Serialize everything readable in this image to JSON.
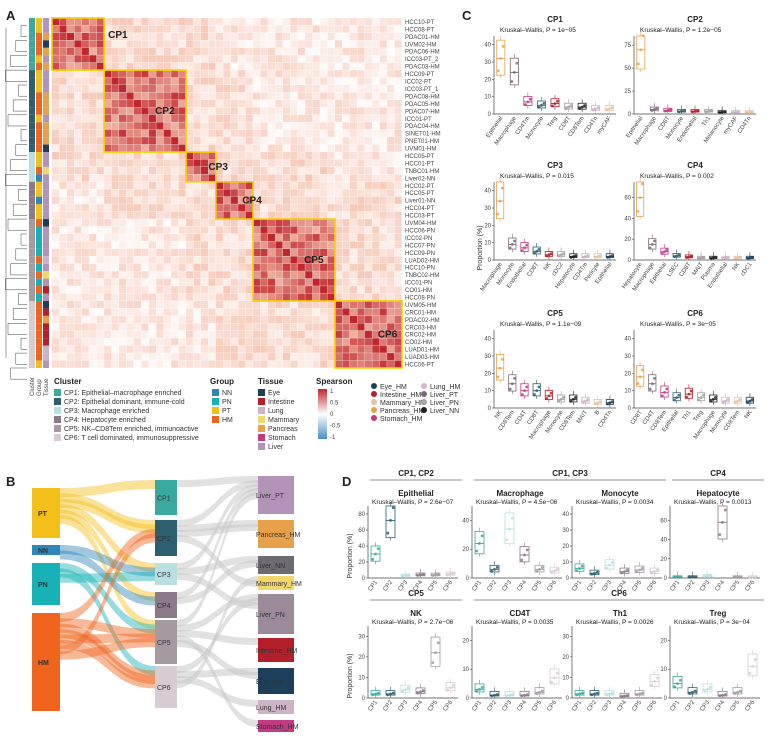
{
  "panels": {
    "A": "A",
    "B": "B",
    "C": "C",
    "D": "D"
  },
  "heatmap": {
    "side_labels": [
      "Cluster",
      "Group",
      "Tissue"
    ],
    "row_labels": [
      "HCC10-PT",
      "HCC08-PT",
      "PDAC01-HM",
      "UVM02-HM",
      "PDAC06-HM",
      "ICC03-PT_2",
      "PDAC03-HM",
      "HCC09-PT",
      "ICC02-PT",
      "ICC03-PT_1",
      "PDAC08-HM",
      "PDAC05-HM",
      "PDAC07-HM",
      "ICC01-PT",
      "PDAC04-HM",
      "SINET01-HM",
      "PNET01-HM",
      "UVM01-HM",
      "HCC05-PT",
      "HCC01-PT",
      "TNBC01-HM",
      "Liver02-NN",
      "HCC02-PT",
      "HCC05-PT",
      "Liver01-NN",
      "HCC04-PT",
      "HCC03-PT",
      "UVM04-HM",
      "HCC06-PN",
      "ICC02-PN",
      "HCC07-PN",
      "HCC09-PN",
      "LUAD02-HM",
      "HCC10-PN",
      "TNBC02-HM",
      "ICC01-PN",
      "CO01-HM",
      "HCC08-PN",
      "UVM05-HM",
      "CRC01-HM",
      "PDAC02-HM",
      "CRC03-HM",
      "CRC02-HM",
      "CO02-HM",
      "LUAD01-HM",
      "LUAD03-HM",
      "HCC06-PT"
    ],
    "clusters": [
      {
        "label": "CP1",
        "start": 0,
        "size": 7
      },
      {
        "label": "CP2",
        "start": 7,
        "size": 11
      },
      {
        "label": "CP3",
        "start": 18,
        "size": 4
      },
      {
        "label": "CP4",
        "start": 22,
        "size": 5
      },
      {
        "label": "CP5",
        "start": 27,
        "size": 11
      },
      {
        "label": "CP6",
        "start": 38,
        "size": 9
      }
    ],
    "colors": {
      "high": "#c0262d",
      "mid": "#f5c1ae",
      "low": "#ffffff",
      "neg": "#6aa7d6",
      "box": "#f5d000"
    }
  },
  "legend": {
    "cluster_title": "Cluster",
    "cluster_items": [
      {
        "label": "CP1: Epithelial–macrophage enriched",
        "color": "#3aa99f"
      },
      {
        "label": "CP2: Epithelial dominant, immune-cold",
        "color": "#2e5f70"
      },
      {
        "label": "CP3: Macrophage enriched",
        "color": "#b9dfe0"
      },
      {
        "label": "CP4: Hepatocyte enriched",
        "color": "#8c7a8a"
      },
      {
        "label": "CP5: NK–CD8Tem enriched, immunoactive",
        "color": "#a59aa2"
      },
      {
        "label": "CP6: T cell dominated, immunosuppressive",
        "color": "#d7ccd4"
      }
    ],
    "group_title": "Group",
    "group_items": [
      {
        "label": "NN",
        "color": "#2f86b8"
      },
      {
        "label": "PN",
        "color": "#17b1b7"
      },
      {
        "label": "PT",
        "color": "#f3bf1b"
      },
      {
        "label": "HM",
        "color": "#f0641d"
      }
    ],
    "tissue_title": "Tissue",
    "tissue_items": [
      {
        "label": "Eye",
        "color": "#1e3f5a"
      },
      {
        "label": "Intestine",
        "color": "#b4202a"
      },
      {
        "label": "Lung",
        "color": "#cdb3c6"
      },
      {
        "label": "Mammary",
        "color": "#f2d76a"
      },
      {
        "label": "Pancreas",
        "color": "#e9a04a"
      },
      {
        "label": "Stomach",
        "color": "#c13b82"
      },
      {
        "label": "Liver",
        "color": "#b493b8"
      }
    ],
    "spearman_title": "Spearson",
    "spearman_ticks": [
      "1",
      "0.5",
      "0",
      "-0.5",
      "-1"
    ],
    "sample_col1": [
      {
        "label": "Eye_HM",
        "color": "#1e3f5a"
      },
      {
        "label": "Intestine_HM",
        "color": "#b4202a"
      },
      {
        "label": "Mammary_HM",
        "color": "#e6c3a1"
      },
      {
        "label": "Pancreas_HM",
        "color": "#e9a04a"
      },
      {
        "label": "Stomach_HM",
        "color": "#c13b82"
      }
    ],
    "sample_col2": [
      {
        "label": "Lung_HM",
        "color": "#d8b6c8"
      },
      {
        "label": "Liver_PT",
        "color": "#7b6a7a"
      },
      {
        "label": "Liver_PN",
        "color": "#a7a0a6"
      },
      {
        "label": "Liver_NN",
        "color": "#222222"
      }
    ]
  },
  "sankey": {
    "groups": [
      {
        "label": "PT",
        "color": "#f3bf1b"
      },
      {
        "label": "NN",
        "color": "#2f86b8"
      },
      {
        "label": "PN",
        "color": "#17b1b7"
      },
      {
        "label": "HM",
        "color": "#f0641d"
      }
    ],
    "clusters": [
      {
        "label": "CP1",
        "color": "#3aa99f"
      },
      {
        "label": "CP2",
        "color": "#2e5f70"
      },
      {
        "label": "CP3",
        "color": "#b9dfe0"
      },
      {
        "label": "CP4",
        "color": "#8c7a8a"
      },
      {
        "label": "CP5",
        "color": "#a59aa2"
      },
      {
        "label": "CP6",
        "color": "#d7ccd4"
      }
    ],
    "tissues": [
      {
        "label": "Liver_PT",
        "color": "#b493b8"
      },
      {
        "label": "Pancreas_HM",
        "color": "#e9a04a"
      },
      {
        "label": "Liver_NN",
        "color": "#6e6a72"
      },
      {
        "label": "Mammary_HM",
        "color": "#f2d76a"
      },
      {
        "label": "Liver_PN",
        "color": "#9b8a9a"
      },
      {
        "label": "Intestine_HM",
        "color": "#b4202a"
      },
      {
        "label": "Eye_HM",
        "color": "#1e3f5a"
      },
      {
        "label": "Lung_HM",
        "color": "#cdb3c6"
      },
      {
        "label": "Stomach_HM",
        "color": "#c13b82"
      }
    ]
  },
  "panel_c": {
    "ylabel": "Proportion (%)",
    "plots": [
      {
        "title": "CP1",
        "test": "Kruskal–Wallis, P = 1e−05",
        "cats": [
          "Epithelial",
          "Macrophage",
          "CD4Tm",
          "Monocyte",
          "Treg",
          "CD8T",
          "CD8Tem",
          "CD4Tn",
          "myCAF"
        ],
        "vals": [
          32,
          24,
          7,
          5,
          6,
          4,
          4,
          3,
          3
        ],
        "yticks": [
          "0",
          "10",
          "20",
          "30",
          "40"
        ],
        "ymax": 45
      },
      {
        "title": "CP2",
        "test": "Kruskal–Wallis, P = 1.2e−05",
        "cats": [
          "Epithelial",
          "Macrophage",
          "CD8T",
          "Monocyte",
          "Endothelial",
          "Th1",
          "Melanocyte",
          "myCAF",
          "CD4Tn"
        ],
        "vals": [
          70,
          5,
          4,
          3,
          3,
          3,
          2,
          2,
          2
        ],
        "yticks": [
          "0",
          "25",
          "50",
          "75"
        ],
        "ymax": 85
      },
      {
        "title": "CP3",
        "test": "Kruskal–Wallis, P = 0.015",
        "cats": [
          "Macrophage",
          "Monocyte",
          "Endothelial",
          "CD8T",
          "NK",
          "cDC2",
          "Hepatocyte",
          "CD4Tm",
          "Pericyte",
          "Epithelial"
        ],
        "vals": [
          34,
          9,
          7,
          5,
          3,
          3,
          2,
          2,
          2,
          2
        ],
        "yticks": [
          "0",
          "10",
          "20",
          "30",
          "40"
        ],
        "ymax": 45
      },
      {
        "title": "CP4",
        "test": "Kruskal–Wallis, P = 0.002",
        "cats": [
          "Hepatocyte",
          "Macrophage",
          "Epithelial",
          "LSEC",
          "CD8T",
          "MAIT",
          "Plasma",
          "Endothelial",
          "NK",
          "cDC1"
        ],
        "vals": [
          60,
          15,
          8,
          4,
          3,
          2,
          2,
          2,
          2,
          2
        ],
        "yticks": [
          "0",
          "20",
          "40",
          "60"
        ],
        "ymax": 75
      },
      {
        "title": "CP5",
        "test": "Kruskal–Wallis, P = 1.1e−09",
        "cats": [
          "NK",
          "CD8Tem",
          "CD4T",
          "CD8T",
          "Macrophage",
          "Monocyte",
          "CD8Tem",
          "MAIT",
          "B",
          "CD4Tn"
        ],
        "vals": [
          23,
          14,
          10,
          10,
          7,
          5,
          5,
          4,
          3,
          3
        ],
        "yticks": [
          "0",
          "10",
          "20",
          "30",
          "40"
        ],
        "ymax": 45
      },
      {
        "title": "CP6",
        "test": "Kruskal–Wallis, P = 3e−05",
        "cats": [
          "CD8T",
          "CD4T",
          "CD8Tem",
          "Epithelial",
          "Th1",
          "Treg",
          "Macrophage",
          "Monocyte",
          "CD8Tem",
          "NK"
        ],
        "vals": [
          18,
          14,
          9,
          6,
          8,
          6,
          5,
          4,
          4,
          4
        ],
        "yticks": [
          "0",
          "10",
          "20",
          "30",
          "40"
        ],
        "ymax": 45
      }
    ]
  },
  "panel_d": {
    "ylabel": "Proportion (%)",
    "group_headers": [
      {
        "label": "CP1, CP2"
      },
      {
        "label": "CP1, CP3"
      },
      {
        "label": "CP4"
      },
      {
        "label": "CP5"
      },
      {
        "label": "CP6"
      }
    ],
    "x_categories": [
      "CP1",
      "CP2",
      "CP3",
      "CP4",
      "CP5",
      "CP6"
    ],
    "x_colors": [
      "#3aa99f",
      "#2e5f70",
      "#b9dfe0",
      "#8c7a8a",
      "#a59aa2",
      "#d7ccd4"
    ],
    "plots": [
      {
        "title": "Epithelial",
        "test": "Kruskal–Wallis, P = 2.6e−07",
        "yticks": [
          "0",
          "20",
          "40",
          "60",
          "80"
        ],
        "ymax": 90,
        "vals": [
          30,
          72,
          3,
          4,
          4,
          5
        ]
      },
      {
        "title": "Macrophage",
        "test": "Kruskal–Wallis, P = 4.5e−06",
        "yticks": [
          "0",
          "20",
          "40"
        ],
        "ymax": 50,
        "vals": [
          24,
          6,
          34,
          16,
          6,
          5
        ]
      },
      {
        "title": "Monocyte",
        "test": "Kruskal–Wallis, P = 0.0034",
        "yticks": [
          "0",
          "10",
          "20",
          "30",
          "40"
        ],
        "ymax": 45,
        "vals": [
          6,
          3,
          8,
          4,
          5,
          4
        ]
      },
      {
        "title": "Hepatocyte",
        "test": "Kruskal–Wallis, P = 0.0013",
        "yticks": [
          "0",
          "20",
          "40",
          "60"
        ],
        "ymax": 75,
        "vals": [
          1,
          1,
          2,
          58,
          1,
          1
        ]
      },
      {
        "title": "NK",
        "test": "Kruskal–Wallis, P = 2.7e−06",
        "yticks": [
          "0",
          "10",
          "20",
          "30"
        ],
        "ymax": 35,
        "vals": [
          2,
          2,
          4,
          3,
          22,
          5
        ]
      },
      {
        "title": "CD4T",
        "test": "Kruskal–Wallis, P = 0.0035",
        "yticks": [
          "0",
          "10",
          "20"
        ],
        "ymax": 25,
        "vals": [
          3,
          1,
          1,
          1,
          2,
          7
        ]
      },
      {
        "title": "Th1",
        "test": "Kruskal–Wallis, P = 0.0026",
        "yticks": [
          "0",
          "10",
          "20",
          "30"
        ],
        "ymax": 35,
        "vals": [
          2,
          2,
          2,
          1,
          2,
          8
        ]
      },
      {
        "title": "Treg",
        "test": "Kruskal–Wallis, P = 3e−04",
        "yticks": [
          "0",
          "10",
          "20"
        ],
        "ymax": 25,
        "vals": [
          5,
          2,
          3,
          1,
          2,
          11
        ]
      }
    ]
  }
}
